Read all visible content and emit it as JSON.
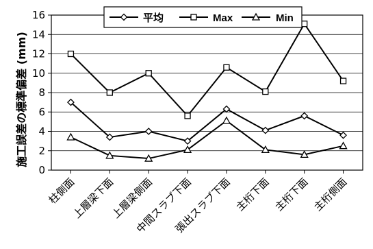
{
  "chart_data": {
    "type": "line",
    "title": "",
    "xlabel": "",
    "ylabel": "施工誤差の標準偏差 (mm)",
    "ylim": [
      0,
      16
    ],
    "yticks": [
      "0",
      "2",
      "4",
      "6",
      "8",
      "10",
      "12",
      "14",
      "16"
    ],
    "categories": [
      "柱側面",
      "上層梁下面",
      "上層梁側面",
      "中間スラブ下面",
      "張出スラブ下面",
      "主桁下面",
      "主桁下面",
      "主桁側面"
    ],
    "series": [
      {
        "name": "平均",
        "marker": "diamond",
        "values": [
          7.0,
          3.4,
          4.0,
          3.0,
          6.3,
          4.1,
          5.6,
          3.6
        ]
      },
      {
        "name": "Max",
        "marker": "square",
        "values": [
          12.0,
          8.0,
          10.0,
          5.6,
          10.6,
          8.1,
          15.1,
          9.2
        ]
      },
      {
        "name": "Min",
        "marker": "triangle",
        "values": [
          3.4,
          1.5,
          1.2,
          2.1,
          5.1,
          2.1,
          1.6,
          2.5
        ]
      }
    ],
    "grid": "horizontal",
    "legend_position": "top"
  }
}
